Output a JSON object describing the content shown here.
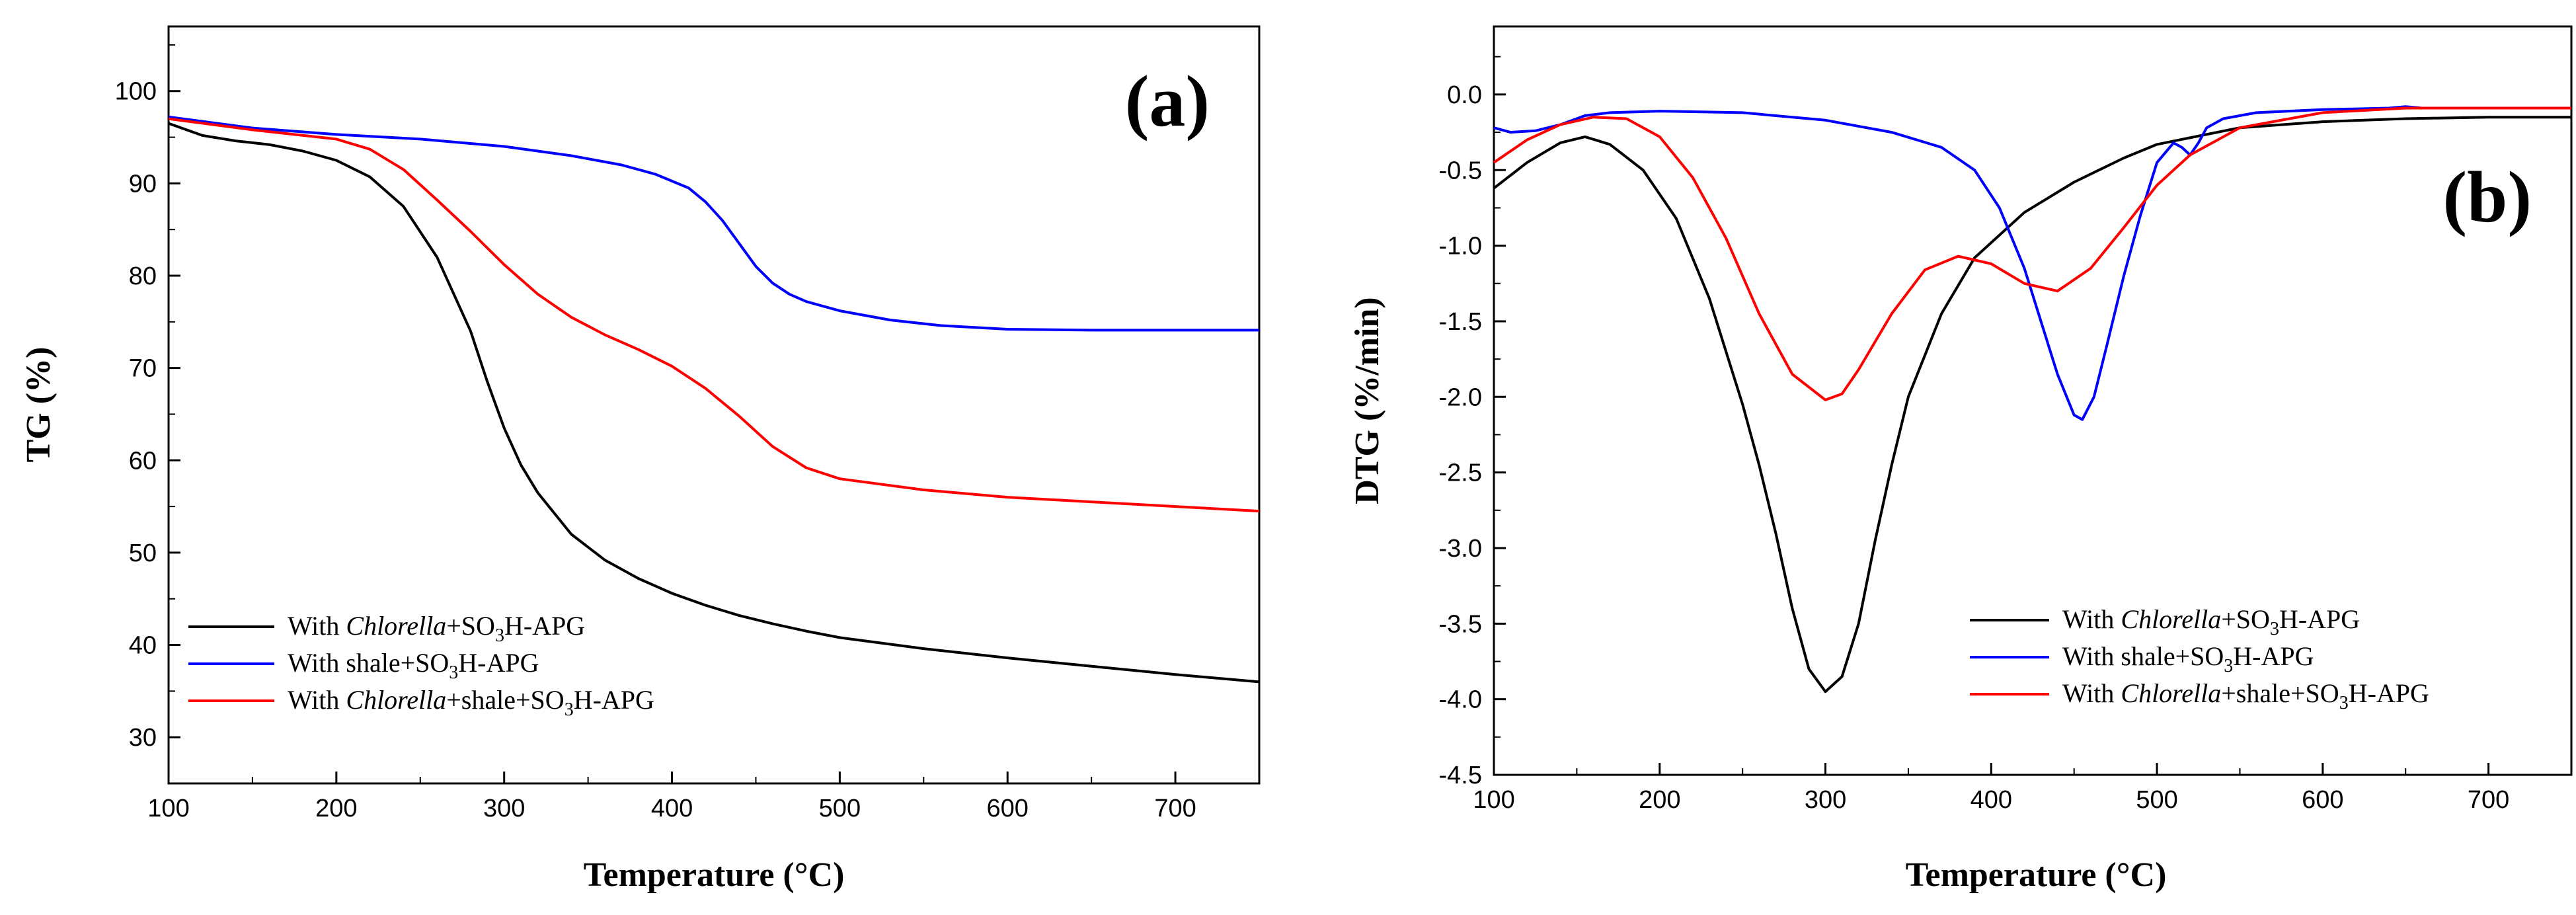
{
  "figure": {
    "panels": [
      {
        "id": "a",
        "panel_label": "(a)",
        "legend": [
          {
            "prefix": "With ",
            "italic": "Chlorella",
            "suffix": "+SO",
            "sub": "3",
            "tail": "H-APG",
            "color": "#000000"
          },
          {
            "prefix": "With shale+SO",
            "italic": "",
            "suffix": "",
            "sub": "3",
            "tail": "H-APG",
            "color": "#0000ff"
          },
          {
            "prefix": "With ",
            "italic": "Chlorella",
            "suffix": "+shale+SO",
            "sub": "3",
            "tail": "H-APG",
            "color": "#ff0000"
          }
        ]
      },
      {
        "id": "b",
        "panel_label": "(b)",
        "legend": [
          {
            "prefix": "With ",
            "italic": "Chlorella",
            "suffix": "+SO",
            "sub": "3",
            "tail": "H-APG",
            "color": "#000000"
          },
          {
            "prefix": "With shale+SO",
            "italic": "",
            "suffix": "",
            "sub": "3",
            "tail": "H-APG",
            "color": "#0000ff"
          },
          {
            "prefix": "With ",
            "italic": "Chlorella",
            "suffix": "+shale+SO",
            "sub": "3",
            "tail": "H-APG",
            "color": "#ff0000"
          }
        ]
      }
    ]
  },
  "chart_data": [
    {
      "type": "line",
      "title": "(a)",
      "xlabel": "Temperature (°C)",
      "ylabel": "TG (%)",
      "xlim": [
        100,
        750
      ],
      "ylim": [
        25,
        107
      ],
      "xticks": [
        100,
        200,
        300,
        400,
        500,
        600,
        700
      ],
      "yticks": [
        30,
        40,
        50,
        60,
        70,
        80,
        90,
        100
      ],
      "tick_decimals": 0,
      "legend_position": "bottom-left",
      "series": [
        {
          "name": "With Chlorella+SO3H-APG",
          "color": "#000000",
          "x": [
            100,
            120,
            140,
            160,
            180,
            200,
            220,
            240,
            260,
            280,
            290,
            300,
            310,
            320,
            340,
            360,
            380,
            400,
            420,
            440,
            460,
            480,
            500,
            550,
            600,
            650,
            700,
            750
          ],
          "y": [
            96.5,
            95.2,
            94.6,
            94.2,
            93.5,
            92.5,
            90.7,
            87.5,
            82.0,
            74.0,
            68.5,
            63.5,
            59.5,
            56.5,
            52.0,
            49.2,
            47.2,
            45.6,
            44.3,
            43.2,
            42.3,
            41.5,
            40.8,
            39.6,
            38.6,
            37.7,
            36.8,
            36.0
          ]
        },
        {
          "name": "With shale+SO3H-APG",
          "color": "#0000ff",
          "x": [
            100,
            150,
            200,
            250,
            300,
            340,
            370,
            390,
            410,
            420,
            430,
            440,
            450,
            460,
            470,
            480,
            500,
            530,
            560,
            600,
            650,
            700,
            750
          ],
          "y": [
            97.2,
            96.0,
            95.3,
            94.8,
            94.0,
            93.0,
            92.0,
            91.0,
            89.5,
            88.0,
            86.0,
            83.5,
            81.0,
            79.2,
            78.0,
            77.2,
            76.2,
            75.2,
            74.6,
            74.2,
            74.1,
            74.1,
            74.1
          ]
        },
        {
          "name": "With Chlorella+shale+SO3H-APG",
          "color": "#ff0000",
          "x": [
            100,
            150,
            200,
            220,
            240,
            260,
            280,
            300,
            320,
            340,
            360,
            380,
            400,
            420,
            440,
            460,
            480,
            500,
            550,
            600,
            650,
            700,
            750
          ],
          "y": [
            97.0,
            95.8,
            94.8,
            93.7,
            91.5,
            88.2,
            84.8,
            81.2,
            78.0,
            75.5,
            73.6,
            72.0,
            70.2,
            67.8,
            64.8,
            61.5,
            59.2,
            58.0,
            56.8,
            56.0,
            55.5,
            55.0,
            54.5
          ]
        }
      ]
    },
    {
      "type": "line",
      "title": "(b)",
      "xlabel": "Temperature (°C)",
      "ylabel": "DTG (%/min)",
      "xlim": [
        100,
        750
      ],
      "ylim": [
        -4.5,
        0.45
      ],
      "xticks": [
        100,
        200,
        300,
        400,
        500,
        600,
        700
      ],
      "yticks": [
        -4.5,
        -4.0,
        -3.5,
        -3.0,
        -2.5,
        -2.0,
        -1.5,
        -1.0,
        -0.5,
        0.0
      ],
      "tick_decimals": 1,
      "legend_position": "bottom-right",
      "series": [
        {
          "name": "With Chlorella+SO3H-APG",
          "color": "#000000",
          "x": [
            100,
            120,
            140,
            155,
            170,
            190,
            210,
            230,
            250,
            260,
            270,
            280,
            290,
            300,
            310,
            320,
            330,
            340,
            350,
            370,
            390,
            420,
            450,
            480,
            500,
            550,
            600,
            650,
            700,
            750
          ],
          "y": [
            -0.62,
            -0.45,
            -0.32,
            -0.28,
            -0.33,
            -0.5,
            -0.82,
            -1.35,
            -2.05,
            -2.45,
            -2.9,
            -3.4,
            -3.8,
            -3.95,
            -3.85,
            -3.5,
            -2.95,
            -2.45,
            -2.0,
            -1.45,
            -1.08,
            -0.78,
            -0.58,
            -0.42,
            -0.33,
            -0.22,
            -0.18,
            -0.16,
            -0.15,
            -0.15
          ]
        },
        {
          "name": "With shale+SO3H-APG",
          "color": "#0000ff",
          "x": [
            100,
            110,
            125,
            140,
            155,
            170,
            200,
            250,
            300,
            340,
            370,
            390,
            405,
            420,
            430,
            440,
            450,
            455,
            462,
            470,
            480,
            490,
            500,
            510,
            515,
            520,
            525,
            530,
            540,
            560,
            600,
            640,
            650,
            660
          ],
          "y": [
            -0.22,
            -0.25,
            -0.24,
            -0.2,
            -0.14,
            -0.12,
            -0.11,
            -0.12,
            -0.17,
            -0.25,
            -0.35,
            -0.5,
            -0.75,
            -1.15,
            -1.5,
            -1.85,
            -2.12,
            -2.15,
            -2.0,
            -1.65,
            -1.2,
            -0.8,
            -0.45,
            -0.32,
            -0.35,
            -0.4,
            -0.32,
            -0.22,
            -0.16,
            -0.12,
            -0.1,
            -0.09,
            -0.08,
            -0.09
          ]
        },
        {
          "name": "With Chlorella+shale+SO3H-APG",
          "color": "#ff0000",
          "x": [
            100,
            120,
            140,
            160,
            180,
            200,
            220,
            240,
            260,
            280,
            300,
            310,
            320,
            340,
            360,
            380,
            400,
            420,
            440,
            460,
            480,
            500,
            520,
            550,
            600,
            650,
            700,
            750
          ],
          "y": [
            -0.45,
            -0.3,
            -0.2,
            -0.15,
            -0.16,
            -0.28,
            -0.55,
            -0.95,
            -1.45,
            -1.85,
            -2.02,
            -1.98,
            -1.82,
            -1.45,
            -1.16,
            -1.07,
            -1.12,
            -1.25,
            -1.3,
            -1.15,
            -0.88,
            -0.6,
            -0.4,
            -0.22,
            -0.12,
            -0.09,
            -0.09,
            -0.09
          ]
        }
      ]
    }
  ]
}
